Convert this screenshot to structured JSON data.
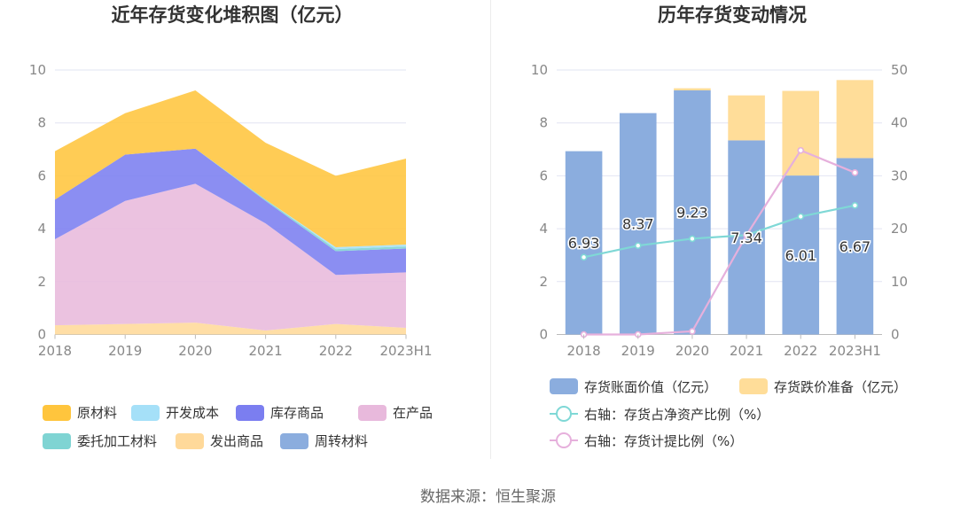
{
  "colors": {
    "raw_material": "#ffc53d",
    "dev_cost": "#a5e0f8",
    "stock_goods": "#7b7ef0",
    "wip": "#e8b9dc",
    "consigned": "#7fd4d3",
    "shipped": "#ffd99a",
    "turnover": "#8badde",
    "book_value_bar": "#8badde",
    "impairment_bar": "#ffdd99",
    "ratio_line": "#7fd8d6",
    "provision_line": "#e6b0dc",
    "grid": "#e2e4f2",
    "axis_text": "#888888",
    "title_text": "#333333"
  },
  "chart_data": [
    {
      "type": "area",
      "stacked": true,
      "title": "近年存货变化堆积图（亿元）",
      "categories": [
        "2018",
        "2019",
        "2020",
        "2021",
        "2022",
        "2023H1"
      ],
      "ylim": [
        0,
        10
      ],
      "yticks": [
        "0",
        "2",
        "4",
        "6",
        "8",
        "10"
      ],
      "grid": true,
      "legend_position": "bottom",
      "series": [
        {
          "key": "shipped",
          "name": "发出商品",
          "values": [
            0.35,
            0.4,
            0.45,
            0.15,
            0.4,
            0.25
          ]
        },
        {
          "key": "wip",
          "name": "在产品",
          "values": [
            3.25,
            4.65,
            5.25,
            4.05,
            1.85,
            2.1
          ]
        },
        {
          "key": "stock_goods",
          "name": "库存商品",
          "values": [
            1.5,
            1.75,
            1.33,
            0.85,
            0.9,
            0.9
          ]
        },
        {
          "key": "consigned",
          "name": "委托加工材料",
          "values": [
            0.0,
            0.0,
            0.0,
            0.05,
            0.08,
            0.08
          ]
        },
        {
          "key": "dev_cost",
          "name": "开发成本",
          "values": [
            0.0,
            0.0,
            0.0,
            0.0,
            0.07,
            0.07
          ]
        },
        {
          "key": "turnover",
          "name": "周转材料",
          "values": [
            0.0,
            0.0,
            0.0,
            0.0,
            0.0,
            0.0
          ]
        },
        {
          "key": "raw_material",
          "name": "原材料",
          "values": [
            1.83,
            1.57,
            2.2,
            2.15,
            2.7,
            3.25
          ]
        }
      ],
      "legend": [
        {
          "key": "raw_material",
          "label": "原材料"
        },
        {
          "key": "dev_cost",
          "label": "开发成本"
        },
        {
          "key": "stock_goods",
          "label": "库存商品"
        },
        {
          "key": "wip",
          "label": "在产品"
        },
        {
          "key": "consigned",
          "label": "委托加工材料"
        },
        {
          "key": "shipped",
          "label": "发出商品"
        },
        {
          "key": "turnover",
          "label": "周转材料"
        }
      ]
    },
    {
      "type": "bar",
      "stacked": true,
      "title": "历年存货变动情况",
      "categories": [
        "2018",
        "2019",
        "2020",
        "2021",
        "2022",
        "2023H1"
      ],
      "ylim_left": [
        0,
        10
      ],
      "ylim_right": [
        0,
        50
      ],
      "yticks_left": [
        "0",
        "2",
        "4",
        "6",
        "8",
        "10"
      ],
      "yticks_right": [
        "0",
        "10",
        "20",
        "30",
        "40",
        "50"
      ],
      "grid": true,
      "legend_position": "bottom",
      "series": [
        {
          "key": "book_value_bar",
          "name": "存货账面价值（亿元）",
          "axis": "left",
          "kind": "bar",
          "values": [
            6.93,
            8.37,
            9.23,
            7.34,
            6.01,
            6.67
          ],
          "labels": [
            "6.93",
            "8.37",
            "9.23",
            "7.34",
            "6.01",
            "6.67"
          ]
        },
        {
          "key": "impairment_bar",
          "name": "存货跌价准备（亿元）",
          "axis": "left",
          "kind": "bar",
          "values": [
            0.0,
            0.0,
            0.08,
            1.7,
            3.2,
            2.95
          ]
        },
        {
          "key": "ratio_line",
          "name": "右轴：存货占净资产比例（%）",
          "axis": "right",
          "kind": "line",
          "values": [
            14.6,
            16.8,
            18.1,
            18.8,
            22.3,
            24.4
          ]
        },
        {
          "key": "provision_line",
          "name": "右轴：存货计提比例（%）",
          "axis": "right",
          "kind": "line",
          "values": [
            0.0,
            0.0,
            0.6,
            18.8,
            34.8,
            30.6
          ]
        }
      ],
      "legend": [
        {
          "key": "book_value_bar",
          "label": "存货账面价值（亿元）",
          "shape": "rect"
        },
        {
          "key": "impairment_bar",
          "label": "存货跌价准备（亿元）",
          "shape": "rect"
        },
        {
          "key": "ratio_line",
          "label": "右轴：存货占净资产比例（%）",
          "shape": "line"
        },
        {
          "key": "provision_line",
          "label": "右轴：存货计提比例（%）",
          "shape": "line"
        }
      ]
    }
  ],
  "source": "数据来源：恒生聚源"
}
